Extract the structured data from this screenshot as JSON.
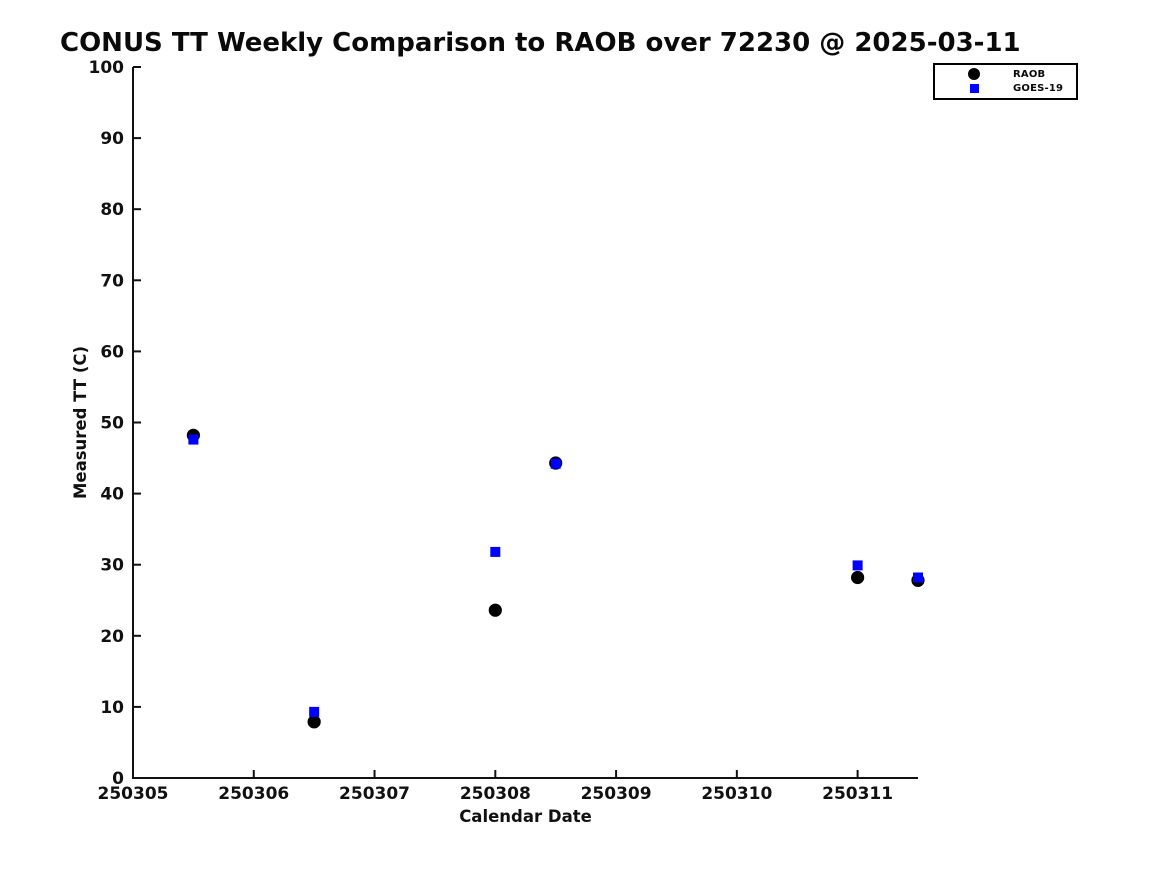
{
  "page": {
    "background": "#ffffff",
    "text_color": "#111111"
  },
  "chart_data": {
    "type": "scatter",
    "title": "CONUS TT Weekly Comparison to RAOB over 72230 @ 2025-03-11",
    "xlabel": "Calendar Date",
    "ylabel": "Measured TT (C)",
    "xlim": [
      250305,
      250311.5
    ],
    "ylim": [
      0,
      100
    ],
    "x_ticks": [
      250305,
      250306,
      250307,
      250308,
      250309,
      250310,
      250311
    ],
    "y_ticks": [
      0,
      10,
      20,
      30,
      40,
      50,
      60,
      70,
      80,
      90,
      100
    ],
    "grid": false,
    "legend_position": "top-right",
    "axis_color": "#111111",
    "series": [
      {
        "name": "RAOB",
        "marker": "circle",
        "color": "#000000",
        "points": [
          [
            250305.5,
            48.2
          ],
          [
            250306.5,
            7.9
          ],
          [
            250308.0,
            23.6
          ],
          [
            250308.5,
            44.3
          ],
          [
            250311.0,
            28.2
          ],
          [
            250311.5,
            27.8
          ]
        ]
      },
      {
        "name": "GOES-19",
        "marker": "square",
        "color": "#0000ff",
        "points": [
          [
            250305.5,
            47.6
          ],
          [
            250306.5,
            9.3
          ],
          [
            250308.0,
            31.8
          ],
          [
            250308.5,
            44.2
          ],
          [
            250311.0,
            29.9
          ],
          [
            250311.5,
            28.2
          ]
        ]
      }
    ]
  }
}
